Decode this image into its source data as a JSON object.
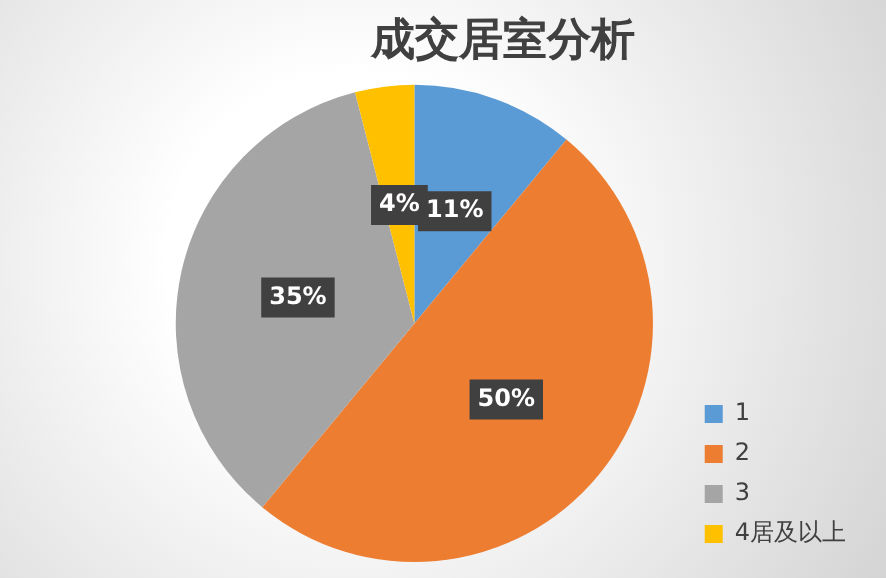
{
  "chart_data": {
    "type": "pie",
    "title": "成交居室分析",
    "categories": [
      "1",
      "2",
      "3",
      "4居及以上"
    ],
    "values": [
      11,
      50,
      35,
      4
    ],
    "value_labels": [
      "11%",
      "50%",
      "35%",
      "4%"
    ],
    "colors": [
      "#5b9bd5",
      "#ed7d31",
      "#a5a5a5",
      "#ffc000"
    ],
    "legend": "right"
  }
}
